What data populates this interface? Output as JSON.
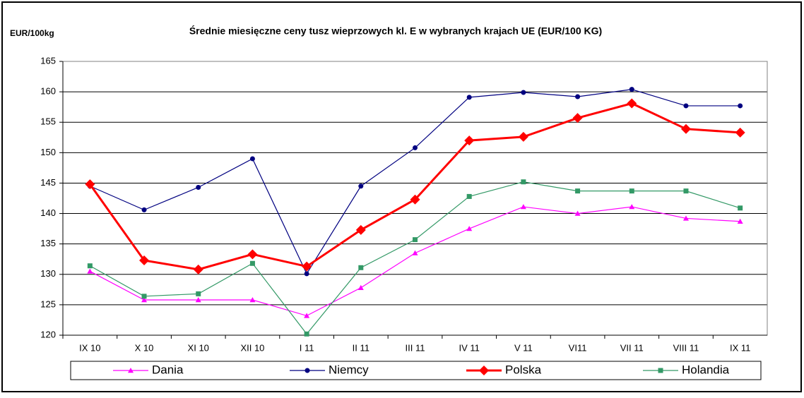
{
  "chart_data": {
    "type": "line",
    "title": "Średnie miesięczne ceny tusz wieprzowych kl. E w wybranych krajach UE (EUR/100 KG)",
    "y_label": "EUR/100kg",
    "categories": [
      "IX 10",
      "X 10",
      "XI 10",
      "XII 10",
      "I 11",
      "II 11",
      "III 11",
      "IV 11",
      "V 11",
      "VI11",
      "VII 11",
      "VIII 11",
      "IX 11"
    ],
    "series": [
      {
        "name": "Dania",
        "color": "#ff00ff",
        "marker": "triangle",
        "values": [
          130.5,
          125.8,
          125.8,
          125.8,
          123.2,
          127.8,
          133.5,
          137.5,
          141.1,
          140.0,
          141.1,
          139.2,
          138.7
        ]
      },
      {
        "name": "Niemcy",
        "color": "#000080",
        "marker": "circle",
        "values": [
          144.5,
          140.6,
          144.3,
          149.0,
          130.1,
          144.5,
          150.8,
          159.1,
          159.9,
          159.2,
          160.4,
          157.7,
          157.7
        ]
      },
      {
        "name": "Polska",
        "color": "#ff0000",
        "marker": "diamond",
        "values": [
          144.8,
          132.3,
          130.8,
          133.3,
          131.3,
          137.3,
          142.3,
          152.0,
          152.6,
          155.7,
          158.1,
          153.9,
          153.3
        ]
      },
      {
        "name": "Holandia",
        "color": "#339966",
        "marker": "square",
        "values": [
          131.4,
          126.4,
          126.8,
          131.8,
          120.2,
          131.1,
          135.7,
          142.8,
          145.2,
          143.7,
          143.7,
          143.7,
          140.9
        ]
      }
    ],
    "ylim": [
      120,
      165
    ],
    "yticks": [
      120,
      125,
      130,
      135,
      140,
      145,
      150,
      155,
      160,
      165
    ],
    "grid": true,
    "legend": "bottom"
  }
}
